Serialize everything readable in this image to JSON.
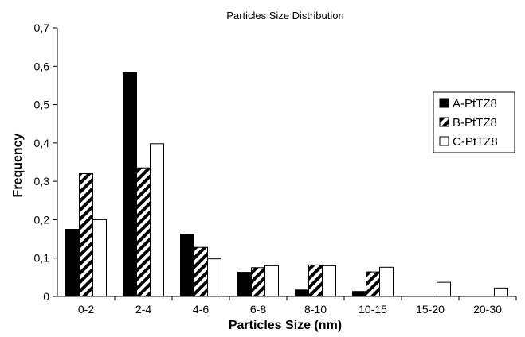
{
  "chart_data": {
    "type": "bar",
    "title": "Particles Size Distribution",
    "xlabel": "Particles Size (nm)",
    "ylabel": "Frequency",
    "categories": [
      "0-2",
      "2-4",
      "4-6",
      "6-8",
      "8-10",
      "10-15",
      "15-20",
      "20-30"
    ],
    "ylim": [
      0,
      0.7
    ],
    "yticks": [
      "0",
      "0,1",
      "0,2",
      "0,3",
      "0,4",
      "0,5",
      "0,6",
      "0,7"
    ],
    "legend_position": "right",
    "series": [
      {
        "name": "A-PtTZ8",
        "style": "solid",
        "color": "#000000",
        "values": [
          0.175,
          0.583,
          0.162,
          0.063,
          0.017,
          0.013,
          0,
          0
        ]
      },
      {
        "name": "B-PtTZ8",
        "style": "hatched",
        "color": "#000000",
        "values": [
          0.32,
          0.335,
          0.128,
          0.075,
          0.082,
          0.064,
          0,
          0
        ]
      },
      {
        "name": "C-PtTZ8",
        "style": "white",
        "color": "#ffffff",
        "values": [
          0.2,
          0.398,
          0.098,
          0.08,
          0.08,
          0.076,
          0.037,
          0.022
        ]
      }
    ]
  }
}
